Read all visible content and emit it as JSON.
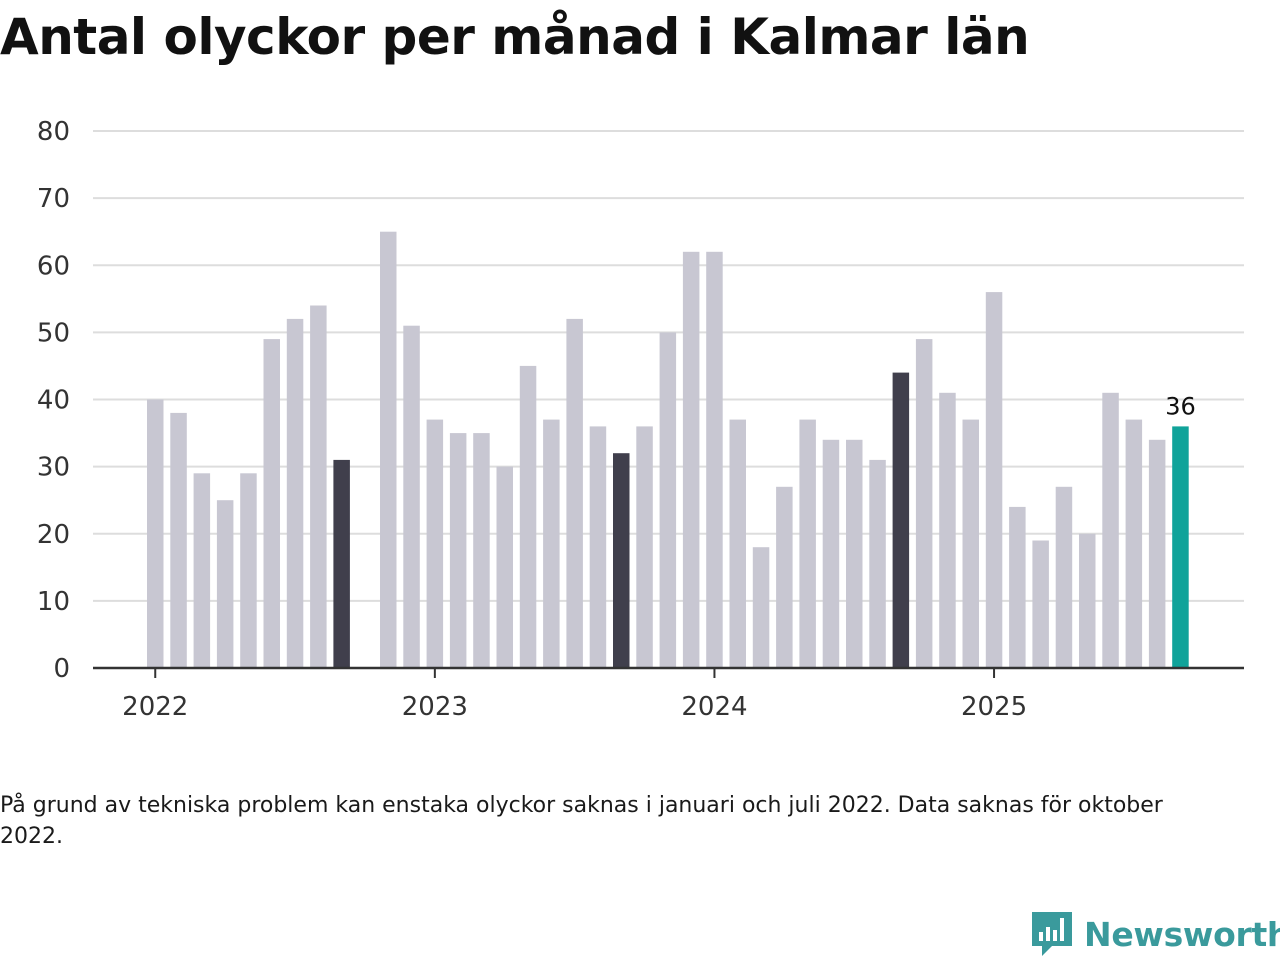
{
  "title": "Antal olyckor per månad i Kalmar län",
  "note": "På grund av tekniska problem kan enstaka olyckor saknas i januari och juli 2022. Data saknas för oktober 2022.",
  "brand": {
    "name": "Newsworthy",
    "color": "#3a9a9c"
  },
  "colors": {
    "default": "#c8c7d2",
    "highlight": "#403f4c",
    "latest": "#10a39a",
    "grid": "#dddddd",
    "axis": "#333333"
  },
  "chart_data": {
    "type": "bar",
    "title": "Antal olyckor per månad i Kalmar län",
    "xlabel": "",
    "ylabel": "",
    "ylim": [
      0,
      80
    ],
    "yticks": [
      0,
      10,
      20,
      30,
      40,
      50,
      60,
      70,
      80
    ],
    "xticks": [
      "2022",
      "2023",
      "2024",
      "2025"
    ],
    "grid": true,
    "categories": [
      "2022-01",
      "2022-02",
      "2022-03",
      "2022-04",
      "2022-05",
      "2022-06",
      "2022-07",
      "2022-08",
      "2022-09",
      "2022-10",
      "2022-11",
      "2022-12",
      "2023-01",
      "2023-02",
      "2023-03",
      "2023-04",
      "2023-05",
      "2023-06",
      "2023-07",
      "2023-08",
      "2023-09",
      "2023-10",
      "2023-11",
      "2023-12",
      "2024-01",
      "2024-02",
      "2024-03",
      "2024-04",
      "2024-05",
      "2024-06",
      "2024-07",
      "2024-08",
      "2024-09",
      "2024-10",
      "2024-11",
      "2024-12",
      "2025-01",
      "2025-02",
      "2025-03",
      "2025-04",
      "2025-05",
      "2025-06",
      "2025-07",
      "2025-08",
      "2025-09"
    ],
    "values": [
      40,
      38,
      29,
      25,
      29,
      49,
      52,
      54,
      31,
      null,
      65,
      51,
      37,
      35,
      35,
      30,
      45,
      37,
      52,
      36,
      32,
      36,
      50,
      62,
      62,
      37,
      18,
      27,
      37,
      34,
      34,
      31,
      44,
      49,
      41,
      37,
      56,
      24,
      19,
      27,
      20,
      41,
      37,
      34,
      36
    ],
    "highlighted": [
      "2022-09",
      "2023-09",
      "2024-09"
    ],
    "latest": "2025-09",
    "data_labels": [
      {
        "category": "2025-09",
        "text": "36"
      }
    ]
  }
}
